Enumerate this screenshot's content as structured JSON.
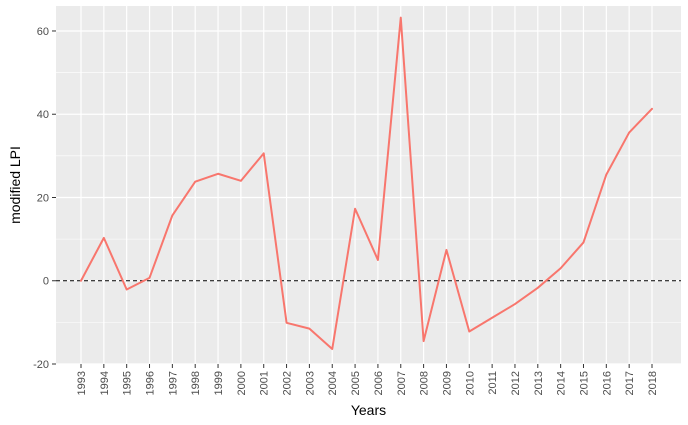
{
  "chart_data": {
    "type": "line",
    "title": "",
    "xlabel": "Years",
    "ylabel": "modified LPI",
    "x": [
      "1993",
      "1994",
      "1995",
      "1996",
      "1997",
      "1998",
      "1999",
      "2000",
      "2001",
      "2002",
      "2003",
      "2004",
      "2005",
      "2006",
      "2007",
      "2008",
      "2009",
      "2010",
      "2011",
      "2012",
      "2013",
      "2014",
      "2015",
      "2016",
      "2017",
      "2018"
    ],
    "series": [
      {
        "values": [
          0,
          10.3,
          -2.1,
          0.7,
          15.7,
          23.8,
          25.7,
          24.0,
          30.6,
          -10.1,
          -11.5,
          -16.4,
          17.3,
          5.0,
          63.2,
          -14.5,
          7.4,
          -12.2,
          -8.9,
          -5.6,
          -1.7,
          3.0,
          9.2,
          25.5,
          35.6,
          41.3
        ],
        "color": "#F8766D"
      }
    ],
    "yticks": [
      -20,
      0,
      20,
      40,
      60
    ],
    "ylim": [
      -20,
      66
    ],
    "reference_line": {
      "y": 0,
      "style": "dashed",
      "color": "#000000"
    },
    "grid": true,
    "panel_background": "#EBEBEB",
    "grid_color": "#FFFFFF",
    "legend": "none"
  }
}
